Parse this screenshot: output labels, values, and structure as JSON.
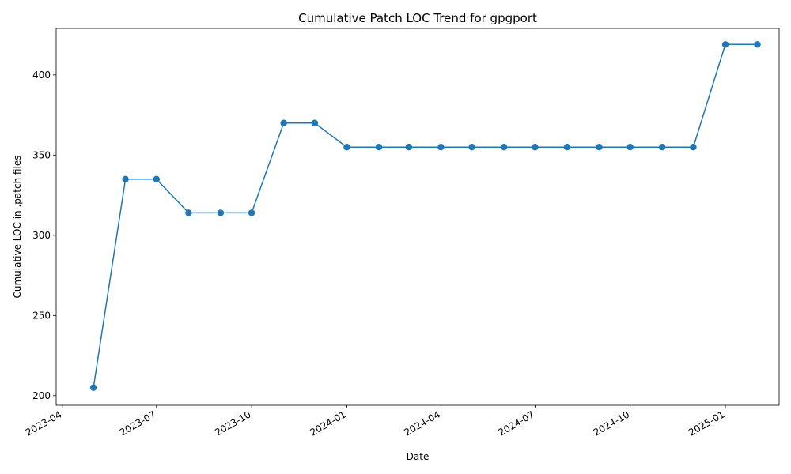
{
  "chart_data": {
    "type": "line",
    "title": "Cumulative Patch LOC Trend for gpgport",
    "xlabel": "Date",
    "ylabel": "Cumulative LOC in .patch files",
    "x_tick_labels": [
      "2023-04",
      "2023-07",
      "2023-10",
      "2024-01",
      "2024-04",
      "2024-07",
      "2024-10",
      "2025-01"
    ],
    "y_ticks": [
      200,
      250,
      300,
      350,
      400
    ],
    "xlim": [
      "2023-03-26",
      "2025-02-22"
    ],
    "ylim": [
      194,
      429
    ],
    "grid": false,
    "marker": "circle",
    "line_color": "#1f77b4",
    "series": [
      {
        "points": [
          {
            "x": "2023-05-01",
            "y": 205
          },
          {
            "x": "2023-06-01",
            "y": 335
          },
          {
            "x": "2023-07-01",
            "y": 335
          },
          {
            "x": "2023-08-01",
            "y": 314
          },
          {
            "x": "2023-09-01",
            "y": 314
          },
          {
            "x": "2023-10-01",
            "y": 314
          },
          {
            "x": "2023-11-01",
            "y": 370
          },
          {
            "x": "2023-12-01",
            "y": 370
          },
          {
            "x": "2024-01-01",
            "y": 355
          },
          {
            "x": "2024-02-01",
            "y": 355
          },
          {
            "x": "2024-03-01",
            "y": 355
          },
          {
            "x": "2024-04-01",
            "y": 355
          },
          {
            "x": "2024-05-01",
            "y": 355
          },
          {
            "x": "2024-06-01",
            "y": 355
          },
          {
            "x": "2024-07-01",
            "y": 355
          },
          {
            "x": "2024-08-01",
            "y": 355
          },
          {
            "x": "2024-09-01",
            "y": 355
          },
          {
            "x": "2024-10-01",
            "y": 355
          },
          {
            "x": "2024-11-01",
            "y": 355
          },
          {
            "x": "2024-12-01",
            "y": 355
          },
          {
            "x": "2025-01-01",
            "y": 419
          },
          {
            "x": "2025-02-01",
            "y": 419
          }
        ]
      }
    ]
  }
}
